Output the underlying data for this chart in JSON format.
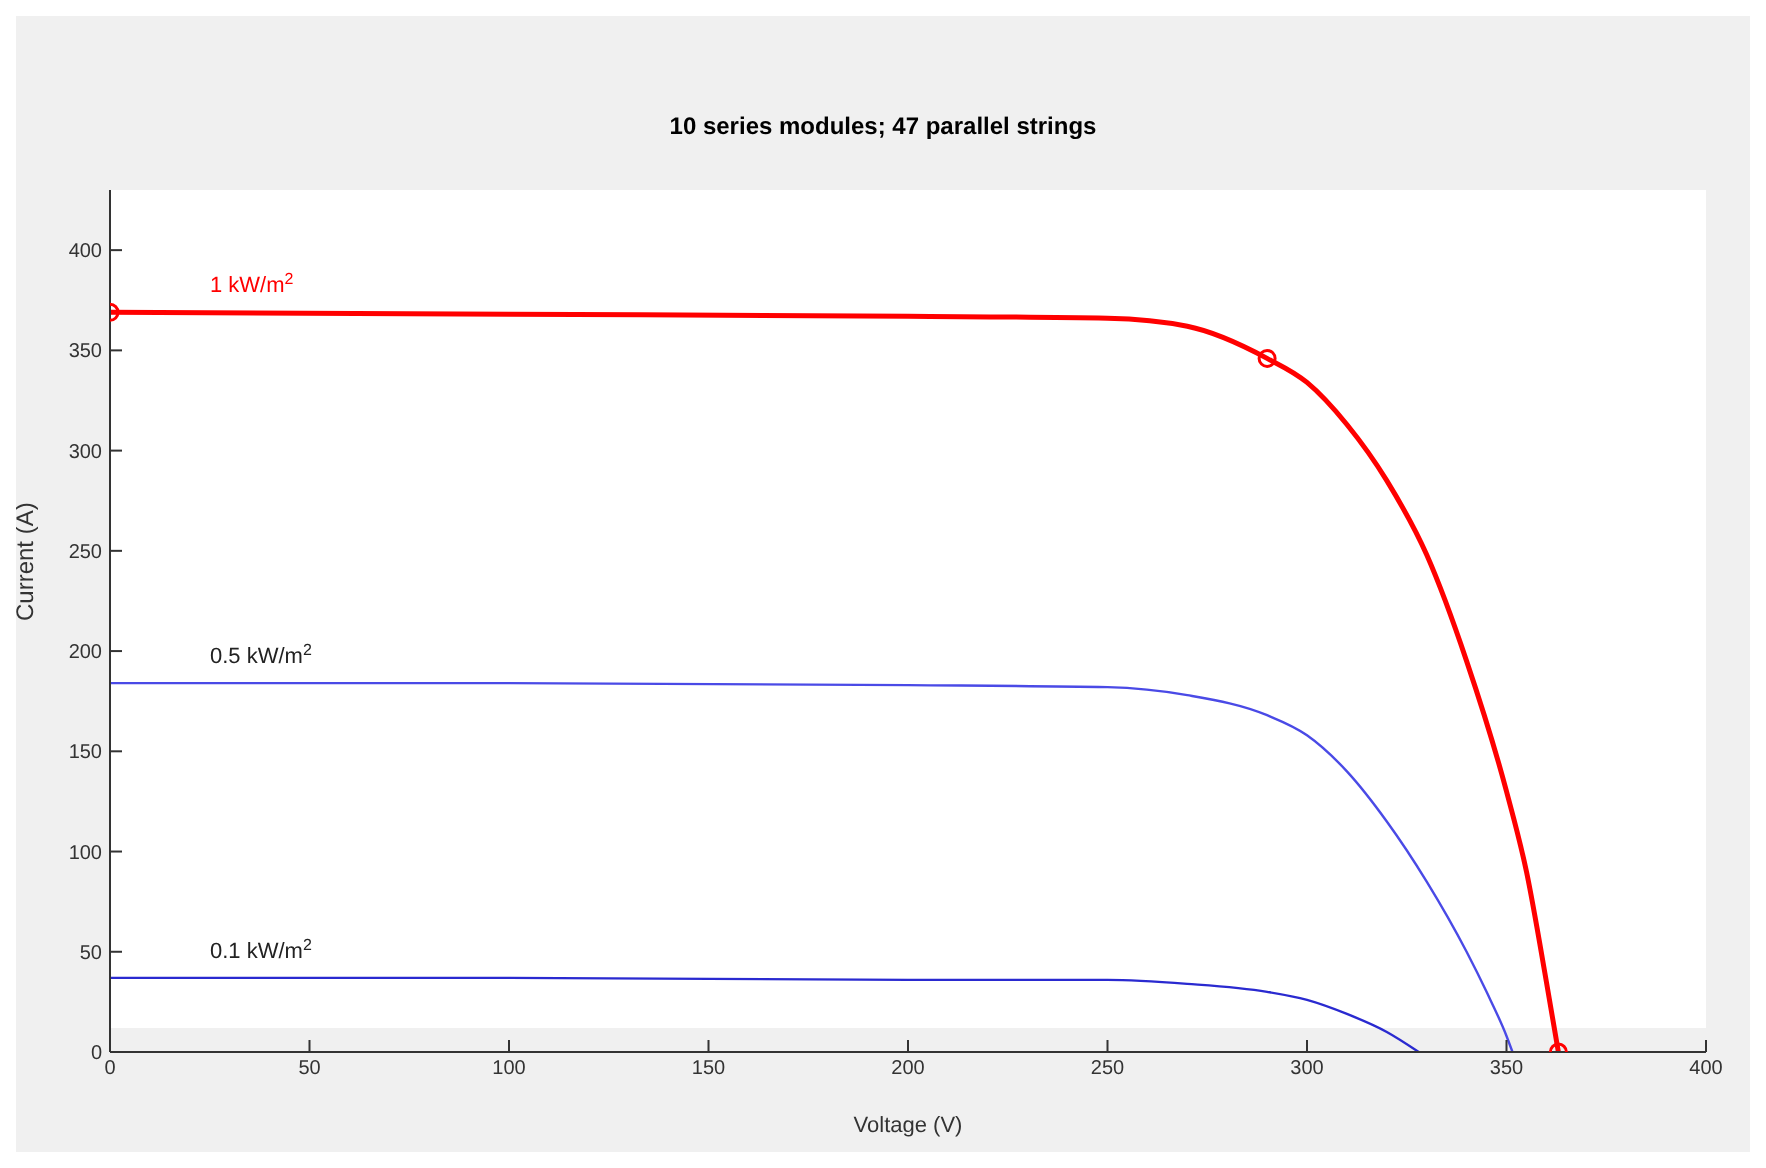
{
  "chart_data": {
    "type": "line",
    "title": "10 series modules; 47 parallel strings",
    "xlabel": "Voltage (V)",
    "ylabel": "Current (A)",
    "xlim": [
      0,
      400
    ],
    "xticks": [
      0,
      50,
      100,
      150,
      200,
      250,
      300,
      350,
      400
    ],
    "ylim": [
      0,
      430
    ],
    "yticks": [
      0,
      50,
      100,
      150,
      200,
      250,
      300,
      350,
      400
    ],
    "grid": false,
    "legend": false,
    "marker": "none",
    "line_style": "solid",
    "series": [
      {
        "name": "1 kW/m$^{2}$",
        "color": "#ff0000",
        "x": [
          0,
          100,
          200,
          250,
          270,
          290,
          300,
          310,
          320,
          330,
          340,
          350,
          355,
          360,
          363
        ],
        "values": [
          369,
          368,
          367,
          366,
          362,
          346,
          334,
          313,
          285,
          248,
          195,
          130,
          90,
          35,
          0
        ]
      },
      {
        "name": "0.5 kW/m$^{2}$",
        "color": "#4a4ae6",
        "x": [
          0,
          100,
          200,
          250,
          270,
          290,
          300,
          310,
          320,
          330,
          340,
          345,
          350,
          351.5
        ],
        "values": [
          184,
          184,
          183,
          182,
          178,
          168,
          158,
          140,
          115,
          85,
          50,
          30,
          8,
          0
        ]
      },
      {
        "name": "0.1 kW/m$^{2}$",
        "color": "#2a2ad0",
        "x": [
          0,
          100,
          200,
          250,
          270,
          290,
          300,
          310,
          320,
          328
        ],
        "values": [
          37,
          37,
          36,
          36,
          34,
          30,
          26,
          19,
          10,
          0
        ]
      },
      {
        "type": "scatter",
        "marker": "circle",
        "color": "#ff0000",
        "x": [
          0,
          290,
          363
        ],
        "values": [
          369,
          346,
          0
        ]
      }
    ]
  }
}
